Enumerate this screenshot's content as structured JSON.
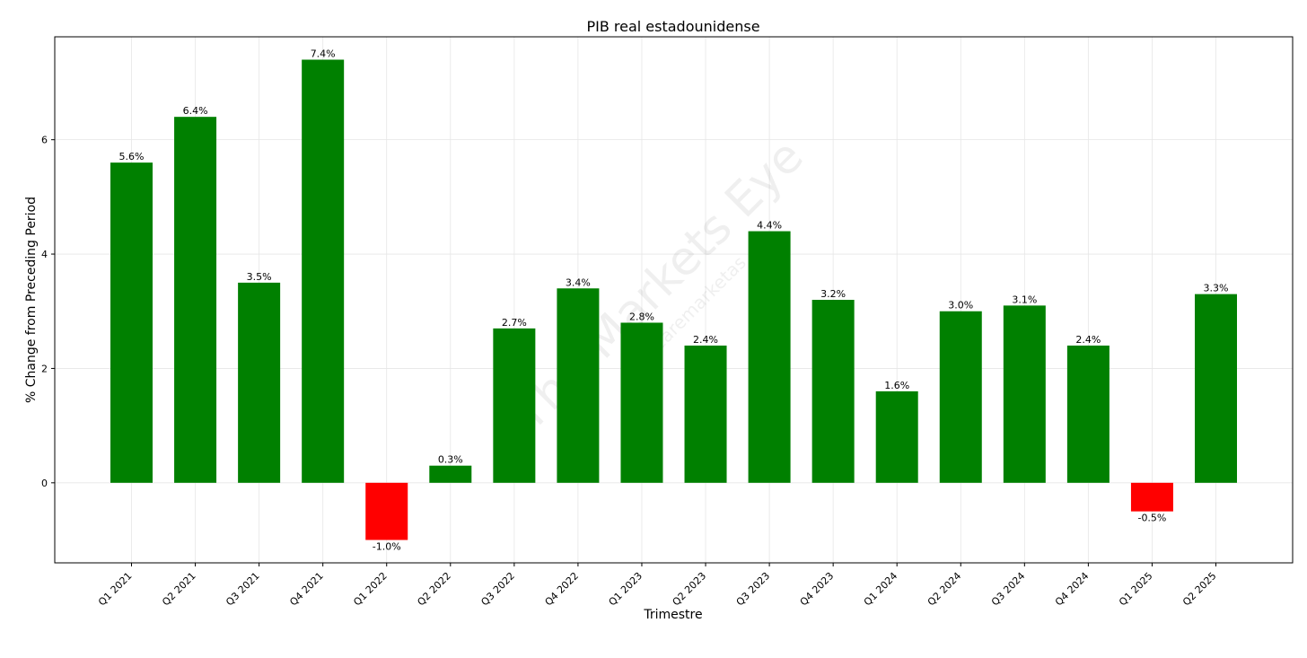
{
  "chart_data": {
    "type": "bar",
    "title": "PIB real estadounidense",
    "xlabel": "Trimestre",
    "ylabel": "% Change from Preceding Period",
    "categories": [
      "Q1 2021",
      "Q2 2021",
      "Q3 2021",
      "Q4 2021",
      "Q1 2022",
      "Q2 2022",
      "Q3 2022",
      "Q4 2022",
      "Q1 2023",
      "Q2 2023",
      "Q3 2023",
      "Q4 2023",
      "Q1 2024",
      "Q2 2024",
      "Q3 2024",
      "Q4 2024",
      "Q1 2025",
      "Q2 2025"
    ],
    "values": [
      5.6,
      6.4,
      3.5,
      7.4,
      -1.0,
      0.3,
      2.7,
      3.4,
      2.8,
      2.4,
      4.4,
      3.2,
      1.6,
      3.0,
      3.1,
      2.4,
      -0.5,
      3.3
    ],
    "data_labels": [
      "5.6%",
      "6.4%",
      "3.5%",
      "7.4%",
      "-1.0%",
      "0.3%",
      "2.7%",
      "3.4%",
      "2.8%",
      "2.4%",
      "4.4%",
      "3.2%",
      "1.6%",
      "3.0%",
      "3.1%",
      "2.4%",
      "-0.5%",
      "3.3%"
    ],
    "yticks": [
      0,
      2,
      4,
      6
    ],
    "ylim": [
      -1.4,
      7.8
    ],
    "grid": true,
    "colors": {
      "positive": "#008000",
      "negative": "#ff0000"
    },
    "watermark": {
      "main": "The Markets Eye",
      "sub": "@wearemarketas"
    }
  }
}
